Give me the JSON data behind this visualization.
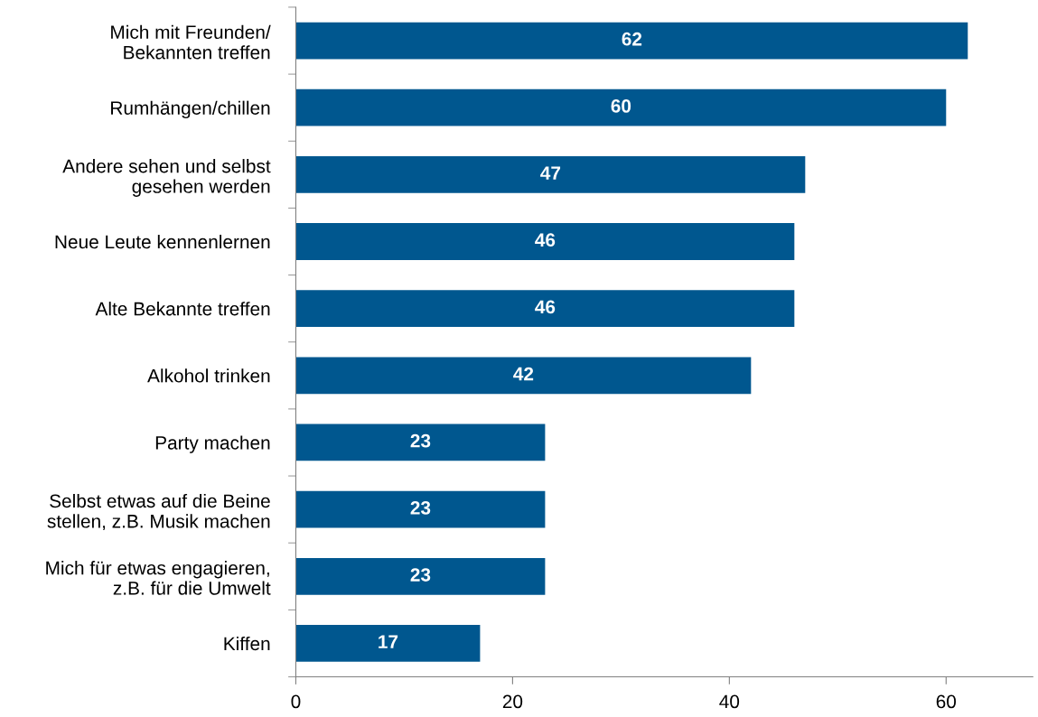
{
  "chart_data": {
    "type": "bar",
    "orientation": "horizontal",
    "categories": [
      "Mich mit Freunden/\nBekannten treffen",
      "Rumhängen/chillen",
      "Andere sehen und selbst\ngesehen werden",
      "Neue Leute kennenlernen",
      "Alte Bekannte treffen",
      "Alkohol trinken",
      "Party machen",
      "Selbst etwas auf die Beine\nstellen, z.B. Musik machen",
      "Mich für etwas engagieren,\nz.B. für die Umwelt",
      "Kiffen"
    ],
    "values": [
      62,
      60,
      47,
      46,
      46,
      42,
      23,
      23,
      23,
      17
    ],
    "color": "#00578f",
    "xlim": [
      0,
      68
    ],
    "xticks": [
      0,
      20,
      40,
      60
    ],
    "data_labels": true,
    "grid": false,
    "legend": false
  }
}
